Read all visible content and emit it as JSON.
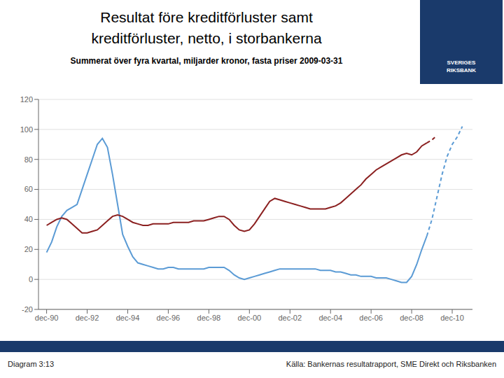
{
  "chart_data": {
    "type": "line",
    "title": "Resultat före kreditförluster samt\nkreditförluster, netto, i storbankerna",
    "subtitle": "Summerat över fyra kvartal, miljarder kronor, fasta priser 2009-03-31",
    "annotations": [
      "SVERIGES\nRIKSBANK",
      "Diagram 3:13",
      "Källa: Bankernas resultatrapport, SME Direkt och Riksbanken"
    ],
    "xlim": [
      1989.6,
      2011.0
    ],
    "xticks": [
      {
        "value": 1990,
        "label": "dec-90"
      },
      {
        "value": 1992,
        "label": "dec-92"
      },
      {
        "value": 1994,
        "label": "dec-94"
      },
      {
        "value": 1996,
        "label": "dec-96"
      },
      {
        "value": 1998,
        "label": "dec-98"
      },
      {
        "value": 2000,
        "label": "dec-00"
      },
      {
        "value": 2002,
        "label": "dec-02"
      },
      {
        "value": 2004,
        "label": "dec-04"
      },
      {
        "value": 2006,
        "label": "dec-06"
      },
      {
        "value": 2008,
        "label": "dec-08"
      },
      {
        "value": 2010,
        "label": "dec-10"
      }
    ],
    "ylim": [
      -20,
      120
    ],
    "yticks": [
      -20,
      0,
      20,
      40,
      60,
      80,
      100,
      120
    ],
    "grid": "y",
    "series": [
      {
        "color": "#5b9bd5",
        "line_style": "solid",
        "x": [
          1990.0,
          1990.25,
          1990.5,
          1990.75,
          1991.0,
          1991.25,
          1991.5,
          1991.75,
          1992.0,
          1992.25,
          1992.5,
          1992.75,
          1993.0,
          1993.25,
          1993.5,
          1993.75,
          1994.0,
          1994.25,
          1994.5,
          1994.75,
          1995.0,
          1995.25,
          1995.5,
          1995.75,
          1996.0,
          1996.25,
          1996.5,
          1996.75,
          1997.0,
          1997.25,
          1997.5,
          1997.75,
          1998.0,
          1998.25,
          1998.5,
          1998.75,
          1999.0,
          1999.25,
          1999.5,
          1999.75,
          2000.0,
          2000.25,
          2000.5,
          2000.75,
          2001.0,
          2001.25,
          2001.5,
          2001.75,
          2002.0,
          2002.25,
          2002.5,
          2002.75,
          2003.0,
          2003.25,
          2003.5,
          2003.75,
          2004.0,
          2004.25,
          2004.5,
          2004.75,
          2005.0,
          2005.25,
          2005.5,
          2005.75,
          2006.0,
          2006.25,
          2006.5,
          2006.75,
          2007.0,
          2007.25,
          2007.5,
          2007.75,
          2008.0,
          2008.25,
          2008.5,
          2008.75
        ],
        "values": [
          18,
          25,
          35,
          42,
          46,
          48,
          50,
          60,
          70,
          80,
          90,
          94,
          88,
          70,
          50,
          30,
          22,
          15,
          11,
          10,
          9,
          8,
          7,
          7,
          8,
          8,
          7,
          7,
          7,
          7,
          7,
          7,
          8,
          8,
          8,
          8,
          6,
          3,
          1,
          0,
          1,
          2,
          3,
          4,
          5,
          6,
          7,
          7,
          7,
          7,
          7,
          7,
          7,
          7,
          6,
          6,
          6,
          5,
          5,
          4,
          3,
          3,
          2,
          2,
          2,
          1,
          1,
          1,
          0,
          -1,
          -2,
          -2,
          2,
          10,
          20,
          29
        ]
      },
      {
        "color": "#5b9bd5",
        "line_style": "dashed",
        "x": [
          2008.75,
          2009.0,
          2009.25,
          2009.5,
          2009.75,
          2010.0,
          2010.25,
          2010.5
        ],
        "values": [
          29,
          40,
          55,
          70,
          82,
          90,
          95,
          102
        ]
      },
      {
        "color": "#8b2020",
        "line_style": "solid",
        "x": [
          1990.0,
          1990.25,
          1990.5,
          1990.75,
          1991.0,
          1991.25,
          1991.5,
          1991.75,
          1992.0,
          1992.25,
          1992.5,
          1992.75,
          1993.0,
          1993.25,
          1993.5,
          1993.75,
          1994.0,
          1994.25,
          1994.5,
          1994.75,
          1995.0,
          1995.25,
          1995.5,
          1995.75,
          1996.0,
          1996.25,
          1996.5,
          1996.75,
          1997.0,
          1997.25,
          1997.5,
          1997.75,
          1998.0,
          1998.25,
          1998.5,
          1998.75,
          1999.0,
          1999.25,
          1999.5,
          1999.75,
          2000.0,
          2000.25,
          2000.5,
          2000.75,
          2001.0,
          2001.25,
          2001.5,
          2001.75,
          2002.0,
          2002.25,
          2002.5,
          2002.75,
          2003.0,
          2003.25,
          2003.5,
          2003.75,
          2004.0,
          2004.25,
          2004.5,
          2004.75,
          2005.0,
          2005.25,
          2005.5,
          2005.75,
          2006.0,
          2006.25,
          2006.5,
          2006.75,
          2007.0,
          2007.25,
          2007.5,
          2007.75,
          2008.0,
          2008.25,
          2008.5,
          2008.75
        ],
        "values": [
          36,
          38,
          40,
          41,
          40,
          37,
          34,
          31,
          31,
          32,
          33,
          36,
          39,
          42,
          43,
          42,
          40,
          38,
          37,
          36,
          36,
          37,
          37,
          37,
          37,
          38,
          38,
          38,
          38,
          39,
          39,
          39,
          40,
          41,
          42,
          42,
          40,
          36,
          33,
          32,
          33,
          37,
          42,
          47,
          52,
          54,
          53,
          52,
          51,
          50,
          49,
          48,
          47,
          47,
          47,
          47,
          48,
          49,
          51,
          54,
          57,
          60,
          63,
          67,
          70,
          73,
          75,
          77,
          79,
          81,
          83,
          84,
          83,
          85,
          89,
          91
        ]
      },
      {
        "color": "#8b2020",
        "line_style": "dashed",
        "x": [
          2008.75,
          2009.0,
          2009.25
        ],
        "values": [
          91,
          93,
          96
        ]
      }
    ]
  }
}
